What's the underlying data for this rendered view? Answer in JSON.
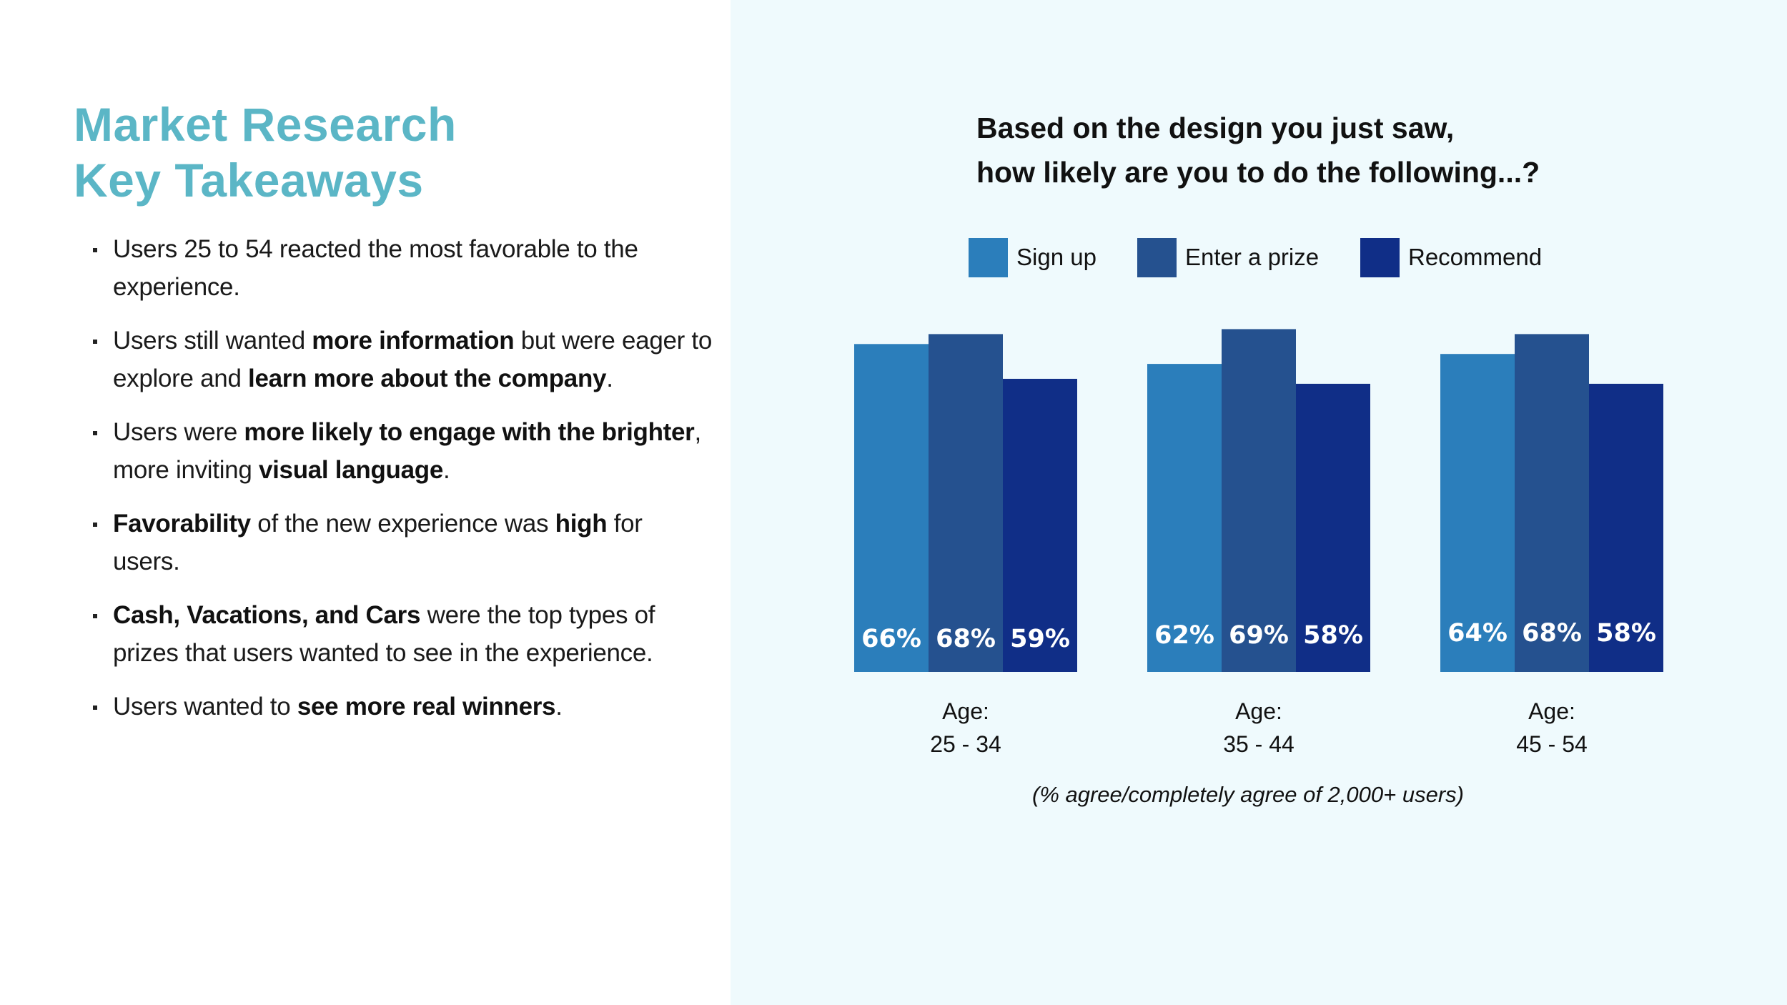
{
  "title": {
    "line1": "Market Research",
    "line2": "Key Takeaways"
  },
  "takeaways": [
    {
      "parts": [
        {
          "t": "Users 25 to 54 reacted the most favorable to the experience."
        }
      ]
    },
    {
      "parts": [
        {
          "t": "Users still wanted "
        },
        {
          "t": "more information",
          "b": true
        },
        {
          "t": " but were eager to explore and "
        },
        {
          "t": "learn more about the company",
          "b": true
        },
        {
          "t": "."
        }
      ]
    },
    {
      "parts": [
        {
          "t": "Users were "
        },
        {
          "t": "more likely to engage with the brighter",
          "b": true
        },
        {
          "t": ", more inviting "
        },
        {
          "t": "visual language",
          "b": true
        },
        {
          "t": "."
        }
      ]
    },
    {
      "parts": [
        {
          "t": "Favorability",
          "b": true
        },
        {
          "t": " of the new experience was "
        },
        {
          "t": "high",
          "b": true
        },
        {
          "t": " for users."
        }
      ]
    },
    {
      "parts": [
        {
          "t": "Cash, Vacations, and Cars",
          "b": true
        },
        {
          "t": " were the top types of prizes that users wanted to see in the experience."
        }
      ]
    },
    {
      "parts": [
        {
          "t": "Users wanted to "
        },
        {
          "t": "see more real winners",
          "b": true
        },
        {
          "t": "."
        }
      ]
    }
  ],
  "colors": {
    "title": "#5bb6c6",
    "panel_bg": "#effafd"
  },
  "chart_data": {
    "type": "bar",
    "title": {
      "line1": "Based on the design you just saw,",
      "line2": "how likely are you to do the following...?"
    },
    "categories": [
      {
        "line1": "Age:",
        "line2": "25 - 34"
      },
      {
        "line1": "Age:",
        "line2": "35 - 44"
      },
      {
        "line1": "Age:",
        "line2": "45 - 54"
      }
    ],
    "series": [
      {
        "name": "Sign up",
        "color": "#2b7ebb",
        "values": [
          66,
          62,
          64
        ]
      },
      {
        "name": "Enter a prize",
        "color": "#25518f",
        "values": [
          68,
          69,
          68
        ]
      },
      {
        "name": "Recommend",
        "color": "#102e87",
        "values": [
          59,
          58,
          58
        ]
      }
    ],
    "data_labels": [
      [
        "66%",
        "62%",
        "64%"
      ],
      [
        "68%",
        "69%",
        "68%"
      ],
      [
        "59%",
        "58%",
        "58%"
      ]
    ],
    "legend_position": "top",
    "footnote": "(% agree/completely agree of 2,000+ users)"
  }
}
